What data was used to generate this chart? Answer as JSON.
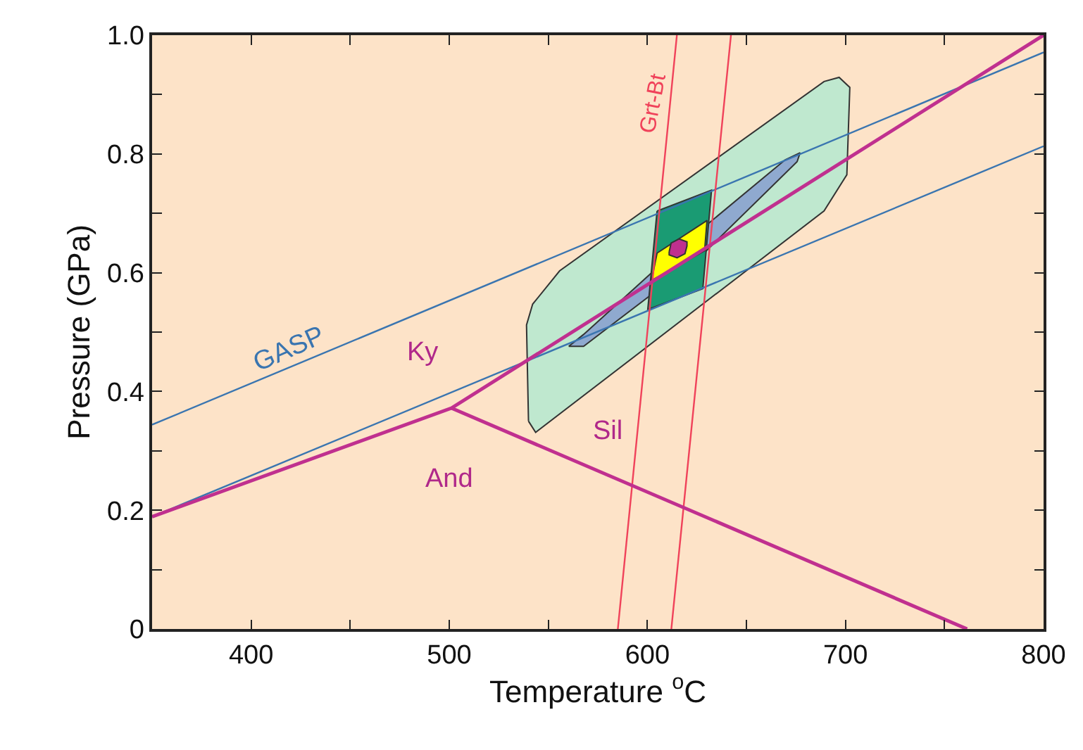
{
  "chart_data": {
    "type": "line",
    "xlabel": "Temperature $^{o}$C",
    "ylabel": "Pressure (GPa)",
    "xlim": [
      350,
      800
    ],
    "ylim": [
      0,
      1.0
    ],
    "xticks": [
      {
        "value": 350,
        "label": null
      },
      400,
      {
        "value": 450,
        "label": null
      },
      500,
      {
        "value": 550,
        "label": null
      },
      600,
      {
        "value": 650,
        "label": null
      },
      700,
      {
        "value": 750,
        "label": null
      },
      800
    ],
    "yticks": [
      0,
      {
        "value": 0.1,
        "label": null
      },
      0.2,
      {
        "value": 0.3,
        "label": null
      },
      0.4,
      {
        "value": 0.5,
        "label": null
      },
      0.6,
      {
        "value": 0.7,
        "label": null
      },
      0.8,
      {
        "value": 0.9,
        "label": null
      },
      {
        "value": 1.0,
        "label": "1.0"
      }
    ],
    "grid": false,
    "marker": "none",
    "series": [
      {
        "type": "area",
        "color": "#bfe8cf",
        "x": [
          540,
          543.6,
          689.2,
          700.7,
          702.2,
          696.8,
          689.2,
          555.7,
          542.1,
          539,
          540
        ],
        "values": [
          0.35,
          0.331,
          0.704,
          0.765,
          0.912,
          0.929,
          0.922,
          0.603,
          0.547,
          0.512,
          0.35
        ]
      },
      {
        "type": "area",
        "color": "#8fa9cf",
        "x": [
          560.3,
          567.8,
          616.4,
          669.5,
          677.1,
          675.6,
          625.5,
          567.8,
          560.3
        ],
        "values": [
          0.476,
          0.496,
          0.643,
          0.79,
          0.802,
          0.787,
          0.623,
          0.476,
          0.476
        ]
      },
      {
        "type": "area",
        "color": "#1a9b73",
        "x": [
          604.9,
          632.4,
          628,
          600.2,
          604.9
        ],
        "values": [
          0.704,
          0.739,
          0.573,
          0.538,
          0.704
        ]
      },
      {
        "type": "area",
        "color": "#ffff00",
        "x": [
          604.9,
          630.1,
          628.9,
          602.1,
          604.9
        ],
        "values": [
          0.633,
          0.688,
          0.637,
          0.587,
          0.633
        ]
      },
      {
        "type": "area",
        "color": "#c0308f",
        "x": [
          611,
          612,
          616,
          620,
          620,
          619,
          615,
          611,
          611
        ],
        "values": [
          0.635,
          0.65,
          0.657,
          0.652,
          0.645,
          0.632,
          0.625,
          0.63,
          0.635
        ]
      },
      {
        "color": "#3a75b0",
        "x": [
          350,
          800
        ],
        "values": [
          0.344,
          0.971
        ]
      },
      {
        "color": "#3a75b0",
        "x": [
          350,
          800
        ],
        "values": [
          0.189,
          0.813
        ]
      },
      {
        "color": "#f0425a",
        "x": [
          585.1,
          614.9
        ],
        "values": [
          0,
          1.0
        ]
      },
      {
        "color": "#f0425a",
        "x": [
          612.1,
          642.2
        ],
        "values": [
          0,
          1.0
        ]
      },
      {
        "color": "#c0308f",
        "x": [
          350,
          501.1,
          800
        ],
        "values": [
          0.189,
          0.372,
          1.0
        ]
      },
      {
        "color": "#c0308f",
        "x": [
          501.1,
          761.4
        ],
        "values": [
          0.372,
          0
        ]
      }
    ],
    "annotations": [
      "GASP",
      "Ky",
      "Sil",
      "And",
      "Grt-Bt"
    ]
  }
}
